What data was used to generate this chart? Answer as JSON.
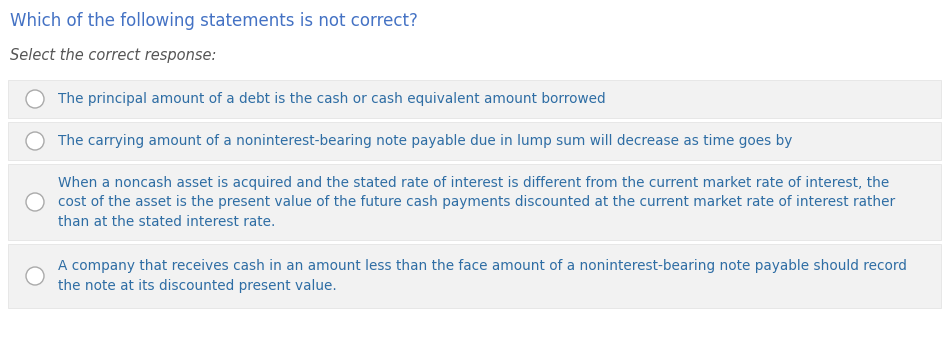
{
  "title": "Which of the following statements is not correct?",
  "subtitle": "Select the correct response:",
  "title_color": "#4472c4",
  "subtitle_color": "#555555",
  "bg_color": "#ffffff",
  "option_bg_color": "#f2f2f2",
  "option_border_color": "#e0e0e0",
  "option_text_color": "#2e6da4",
  "circle_edge_color": "#aaaaaa",
  "options": [
    "The principal amount of a debt is the cash or cash equivalent amount borrowed",
    "The carrying amount of a noninterest-bearing note payable due in lump sum will decrease as time goes by",
    "When a noncash asset is acquired and the stated rate of interest is different from the current market rate of interest, the\ncost of the asset is the present value of the future cash payments discounted at the current market rate of interest rather\nthan at the stated interest rate.",
    "A company that receives cash in an amount less than the face amount of a noninterest-bearing note payable should record\nthe note at its discounted present value."
  ],
  "title_fontsize": 12,
  "subtitle_fontsize": 10.5,
  "option_fontsize": 9.8,
  "figwidth": 9.49,
  "figheight": 3.56,
  "dpi": 100
}
